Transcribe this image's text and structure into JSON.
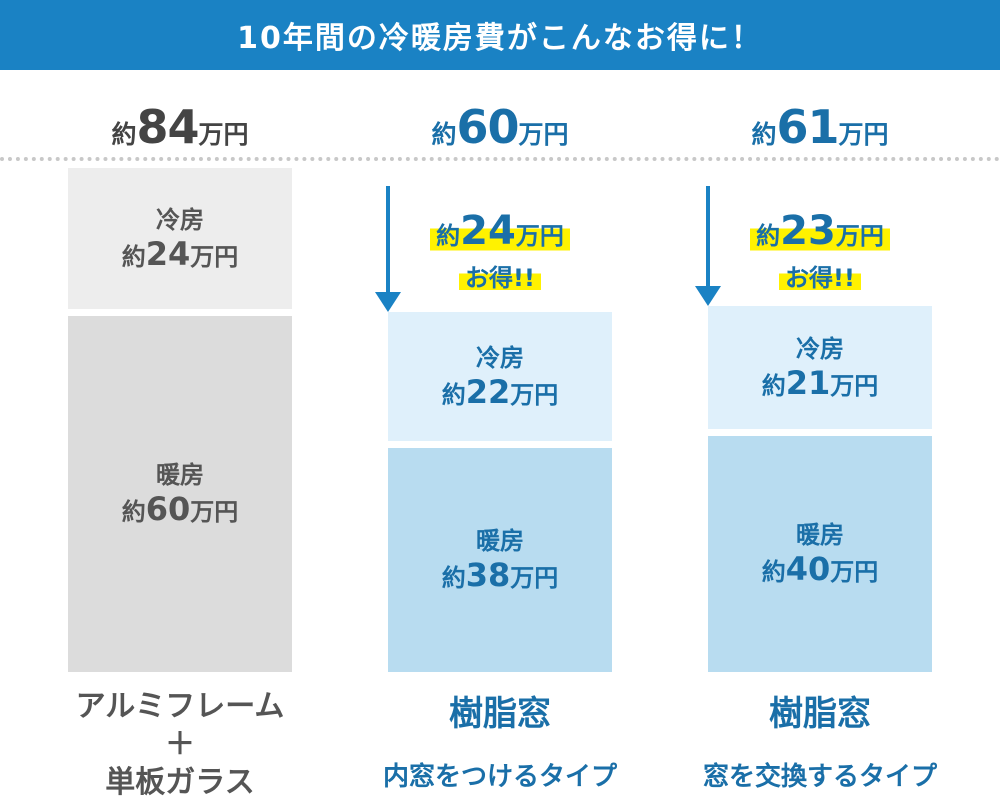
{
  "header": {
    "title": "10年間の冷暖房費がこんなお得に！"
  },
  "colors": {
    "header_bg": "#1a82c4",
    "blue_text": "#1a6fa8",
    "gray_text": "#555555",
    "highlight": "#fff200"
  },
  "chart_data": {
    "type": "bar",
    "unit": "万円",
    "categories": [
      {
        "name_lines": [
          "アルミフレーム",
          "＋",
          "単板ガラス"
        ],
        "total": 84,
        "cooling": 24,
        "heating": 60,
        "saving": null
      },
      {
        "name_main": "樹脂窓",
        "name_sub": "内窓をつけるタイプ",
        "total": 60,
        "cooling": 22,
        "heating": 38,
        "saving": 24
      },
      {
        "name_main": "樹脂窓",
        "name_sub": "窓を交換するタイプ",
        "total": 61,
        "cooling": 21,
        "heating": 40,
        "saving": 23
      }
    ],
    "series": [
      {
        "name": "冷房",
        "values": [
          24,
          22,
          21
        ]
      },
      {
        "name": "暖房",
        "values": [
          60,
          38,
          40
        ]
      }
    ],
    "text": {
      "prefix": "約",
      "suffix": "万円",
      "cooling": "冷房",
      "heating": "暖房",
      "otoku": "お得!!"
    }
  }
}
